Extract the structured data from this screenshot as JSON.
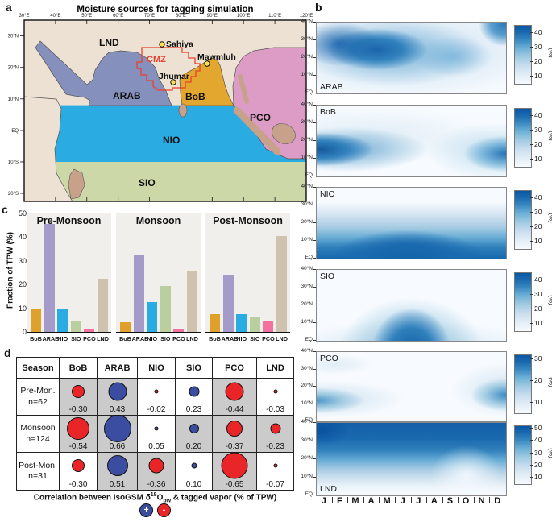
{
  "panels": {
    "a": "a",
    "b": "b",
    "c": "c",
    "d": "d"
  },
  "map": {
    "title": "Moisture sources for tagging simulation",
    "lon_ticks": [
      "30°E",
      "40°E",
      "50°E",
      "60°E",
      "70°E",
      "80°E",
      "90°E",
      "100°E",
      "110°E",
      "120°E"
    ],
    "lat_ticks": [
      "30°N",
      "20°N",
      "10°N",
      "EQ",
      "10°S",
      "20°S"
    ],
    "regions": [
      {
        "name": "LND",
        "color": "#ece1d2"
      },
      {
        "name": "CMZ",
        "color": "#e8412c"
      },
      {
        "name": "ARAB",
        "color": "#8690bd"
      },
      {
        "name": "BoB",
        "color": "#e3a62e"
      },
      {
        "name": "NIO",
        "color": "#2aabe2"
      },
      {
        "name": "PCO",
        "color": "#dc9cc6"
      },
      {
        "name": "SIO",
        "color": "#ccd8a7"
      }
    ],
    "sites": [
      "Sahiya",
      "Mawmluh",
      "Jhumar"
    ]
  },
  "chart_data": [
    {
      "id": "panel-b",
      "type": "heatmap",
      "x": [
        "J",
        "F",
        "M",
        "A",
        "M",
        "J",
        "J",
        "A",
        "S",
        "O",
        "N",
        "D"
      ],
      "lat_ticks": [
        "40°N",
        "30°N",
        "20°N",
        "10°N",
        "EQ"
      ],
      "lat_order_note": "values rows ordered 40N,30N,20N,10N,EQ; units % of TPW",
      "unit": "(%)",
      "dashed_lines_at_month_boundaries": [
        5,
        9
      ],
      "subplots": [
        {
          "region": "ARAB",
          "cb_ticks": [
            10,
            20,
            30,
            40
          ],
          "cb_max": 45,
          "label_pos": "bottom",
          "values": [
            [
              14,
              16,
              20,
              24,
              26,
              24,
              18,
              14,
              10,
              8,
              18,
              28
            ],
            [
              24,
              30,
              36,
              40,
              42,
              38,
              30,
              24,
              20,
              14,
              16,
              22
            ],
            [
              30,
              36,
              42,
              45,
              44,
              40,
              30,
              26,
              22,
              16,
              14,
              18
            ],
            [
              14,
              18,
              22,
              28,
              30,
              26,
              20,
              18,
              14,
              10,
              8,
              10
            ],
            [
              5,
              6,
              8,
              10,
              12,
              10,
              8,
              8,
              6,
              5,
              4,
              5
            ]
          ]
        },
        {
          "region": "BoB",
          "cb_ticks": [
            10,
            20,
            30,
            40
          ],
          "cb_max": 45,
          "label_pos": "top",
          "values": [
            [
              2,
              2,
              2,
              2,
              2,
              2,
              2,
              2,
              2,
              2,
              2,
              2
            ],
            [
              8,
              6,
              5,
              4,
              3,
              3,
              3,
              3,
              4,
              6,
              8,
              9
            ],
            [
              25,
              20,
              15,
              10,
              6,
              4,
              4,
              5,
              8,
              15,
              22,
              26
            ],
            [
              44,
              40,
              32,
              22,
              12,
              6,
              5,
              6,
              10,
              20,
              32,
              42
            ],
            [
              30,
              25,
              18,
              12,
              8,
              5,
              4,
              5,
              8,
              14,
              22,
              28
            ]
          ]
        },
        {
          "region": "NIO",
          "cb_ticks": [
            10,
            20,
            30,
            40
          ],
          "cb_max": 45,
          "label_pos": "top",
          "values": [
            [
              3,
              3,
              4,
              5,
              6,
              7,
              7,
              7,
              6,
              5,
              4,
              3
            ],
            [
              5,
              5,
              6,
              8,
              10,
              12,
              12,
              12,
              10,
              8,
              6,
              5
            ],
            [
              10,
              10,
              12,
              15,
              20,
              25,
              25,
              24,
              20,
              15,
              12,
              10
            ],
            [
              25,
              25,
              28,
              32,
              38,
              42,
              42,
              40,
              38,
              32,
              28,
              25
            ],
            [
              40,
              40,
              42,
              45,
              45,
              45,
              45,
              45,
              45,
              42,
              40,
              40
            ]
          ]
        },
        {
          "region": "SIO",
          "cb_ticks": [
            10,
            20,
            30,
            40
          ],
          "cb_max": 45,
          "label_pos": "top",
          "values": [
            [
              1,
              1,
              1,
              2,
              5,
              10,
              12,
              10,
              6,
              2,
              1,
              1
            ],
            [
              2,
              2,
              2,
              4,
              10,
              20,
              25,
              22,
              12,
              5,
              2,
              2
            ],
            [
              3,
              3,
              4,
              6,
              15,
              28,
              32,
              30,
              20,
              8,
              4,
              3
            ],
            [
              5,
              5,
              6,
              10,
              20,
              35,
              40,
              38,
              28,
              12,
              6,
              5
            ],
            [
              8,
              8,
              10,
              14,
              25,
              40,
              42,
              40,
              32,
              15,
              10,
              8
            ]
          ]
        },
        {
          "region": "PCO",
          "cb_ticks": [
            10,
            20,
            30
          ],
          "cb_max": 32,
          "label_pos": "top",
          "values": [
            [
              3,
              2,
              2,
              1,
              1,
              1,
              1,
              1,
              1,
              1,
              2,
              3
            ],
            [
              8,
              5,
              3,
              2,
              1,
              1,
              1,
              1,
              1,
              3,
              8,
              10
            ],
            [
              15,
              12,
              8,
              4,
              2,
              1,
              1,
              1,
              2,
              6,
              12,
              16
            ],
            [
              22,
              18,
              12,
              6,
              3,
              1,
              1,
              1,
              2,
              8,
              15,
              20
            ],
            [
              18,
              14,
              10,
              5,
              2,
              1,
              1,
              1,
              2,
              6,
              12,
              16
            ]
          ]
        },
        {
          "region": "LND",
          "cb_ticks": [
            10,
            20,
            30,
            40,
            50
          ],
          "cb_max": 52,
          "label_pos": "bottom",
          "values": [
            [
              48,
              48,
              48,
              48,
              48,
              48,
              46,
              45,
              44,
              45,
              47,
              48
            ],
            [
              45,
              42,
              40,
              38,
              38,
              35,
              32,
              32,
              30,
              34,
              42,
              45
            ],
            [
              25,
              22,
              20,
              18,
              18,
              15,
              14,
              14,
              12,
              15,
              20,
              24
            ],
            [
              12,
              10,
              9,
              8,
              8,
              7,
              6,
              6,
              5,
              6,
              8,
              10
            ],
            [
              6,
              5,
              4,
              4,
              4,
              3,
              3,
              3,
              2,
              3,
              4,
              5
            ]
          ]
        }
      ]
    },
    {
      "id": "panel-c",
      "type": "bar",
      "ylabel": "Fraction of TPW (%)",
      "ylim": [
        0,
        50
      ],
      "yticks": [
        0,
        10,
        20,
        30,
        40,
        50
      ],
      "categories": [
        "BoB",
        "ARAB",
        "NIO",
        "SIO",
        "PCO",
        "LND"
      ],
      "series_colors": {
        "BoB": "#dfa02c",
        "ARAB": "#a49bca",
        "NIO": "#2aace2",
        "SIO": "#b9cf9f",
        "PCO": "#f4719f",
        "LND": "#cfc3af"
      },
      "groups": [
        {
          "title": "Pre-Monsoon",
          "values": [
            9.5,
            45.5,
            9.5,
            4.5,
            1.5,
            22.5
          ]
        },
        {
          "title": "Monsoon",
          "values": [
            4,
            32.5,
            12.5,
            19.5,
            1,
            25.5
          ]
        },
        {
          "title": "Post-Monsoon",
          "values": [
            7.5,
            24,
            7.5,
            6.5,
            4.5,
            40.5
          ]
        }
      ]
    },
    {
      "id": "panel-d",
      "type": "table",
      "columns": [
        "Season",
        "BoB",
        "ARAB",
        "NIO",
        "SIO",
        "PCO",
        "LND"
      ],
      "rows": [
        {
          "season": "Pre-Mon.",
          "n": "n=62",
          "values": [
            "-0.30",
            "0.43",
            "-0.02",
            "0.23",
            "-0.44",
            "-0.03"
          ],
          "shaded": [
            true,
            true,
            false,
            false,
            true,
            false
          ]
        },
        {
          "season": "Monsoon",
          "n": "n=124",
          "values": [
            "-0.54",
            "0.66",
            "0.05",
            "0.20",
            "-0.37",
            "-0.23"
          ],
          "shaded": [
            true,
            true,
            false,
            true,
            true,
            true
          ]
        },
        {
          "season": "Post-Mon.",
          "n": "n=31",
          "values": [
            "-0.30",
            "0.51",
            "-0.36",
            "0.10",
            "-0.65",
            "-0.07"
          ],
          "shaded": [
            false,
            true,
            true,
            false,
            true,
            false
          ]
        }
      ],
      "positive_color": "#3b4da1",
      "negative_color": "#e92528",
      "caption": {
        "pre": "Correlation between IsoGSM δ",
        "sup": "18",
        "mid": "O",
        "sub": "pw",
        "post": " & tagged vapor (% of TPW)"
      },
      "legend": {
        "plus": "+",
        "minus": "-"
      }
    }
  ]
}
